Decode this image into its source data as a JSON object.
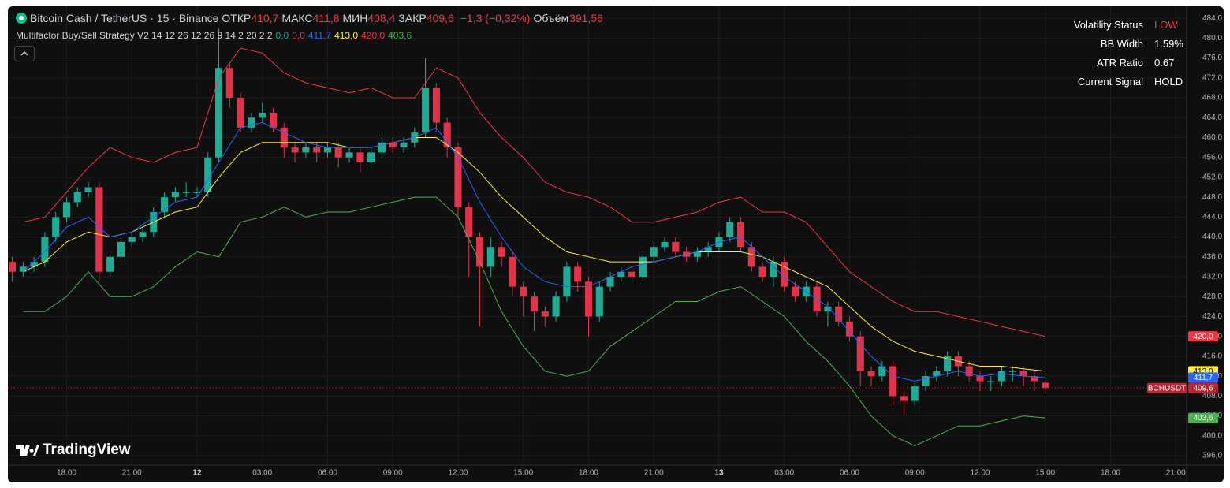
{
  "chart_data": {
    "type": "candlestick",
    "title": "Bitcoin Cash / TetherUS · 15 · Binance",
    "ohlc": [
      {
        "label": "ОТКР",
        "value": "410,7"
      },
      {
        "label": "МАКС",
        "value": "411,8"
      },
      {
        "label": "МИН",
        "value": "408,4"
      },
      {
        "label": "ЗАКР",
        "value": "409,6"
      }
    ],
    "change": "−1,3 (−0,32%)",
    "volume_label": "Объём",
    "volume": "391,56",
    "indicator": "Multifactor Buy/Sell Strategy V2 14 12 26 12 26 9 14 2 20 2 2",
    "indicator_values": [
      {
        "label": "0,0",
        "color": "#22ab94"
      },
      {
        "label": "0,0",
        "color": "#f23645"
      },
      {
        "label": "411,7",
        "color": "#2962ff"
      },
      {
        "label": "413,0",
        "color": "#ffeb3b"
      },
      {
        "label": "420,0",
        "color": "#f23645"
      },
      {
        "label": "403,6",
        "color": "#4caf50"
      }
    ],
    "table": [
      [
        "Volatility Status",
        "LOW"
      ],
      [
        "BB Width",
        "1.59%"
      ],
      [
        "ATR Ratio",
        "0.67"
      ],
      [
        "Current Signal",
        "HOLD"
      ]
    ],
    "table_highlight_color": "#f23645",
    "logo": "TradingView",
    "up_color": "#22ab94",
    "down_color": "#e0344b",
    "grid": true,
    "xlim": [
      -8.7,
      45.5
    ],
    "ylim": [
      394.1,
      486.4
    ],
    "xticks": [
      {
        "value": -6,
        "label": "18:00"
      },
      {
        "value": -3,
        "label": "21:00"
      },
      {
        "value": 0,
        "label": "12"
      },
      {
        "value": 3,
        "label": "03:00"
      },
      {
        "value": 6,
        "label": "06:00"
      },
      {
        "value": 9,
        "label": "09:00"
      },
      {
        "value": 12,
        "label": "12:00"
      },
      {
        "value": 15,
        "label": "15:00"
      },
      {
        "value": 18,
        "label": "18:00"
      },
      {
        "value": 21,
        "label": "21:00"
      },
      {
        "value": 24,
        "label": "13"
      },
      {
        "value": 27,
        "label": "03:00"
      },
      {
        "value": 30,
        "label": "06:00"
      },
      {
        "value": 33,
        "label": "09:00"
      },
      {
        "value": 36,
        "label": "12:00"
      },
      {
        "value": 39,
        "label": "15:00"
      },
      {
        "value": 42,
        "label": "18:00"
      },
      {
        "value": 45,
        "label": "21:00"
      }
    ],
    "yticks": [
      {
        "value": 396,
        "label": "396,0"
      },
      {
        "value": 400,
        "label": "400,0"
      },
      {
        "value": 404,
        "label": "404,0"
      },
      {
        "value": 408,
        "label": "408,0"
      },
      {
        "value": 412,
        "label": "412,0"
      },
      {
        "value": 416,
        "label": "416,0"
      },
      {
        "value": 420,
        "label": "420,0"
      },
      {
        "value": 424,
        "label": "424,0"
      },
      {
        "value": 428,
        "label": "428,0"
      },
      {
        "value": 432,
        "label": "432,0"
      },
      {
        "value": 436,
        "label": "436,0"
      },
      {
        "value": 440,
        "label": "440,0"
      },
      {
        "value": 444,
        "label": "444,0"
      },
      {
        "value": 448,
        "label": "448,0"
      },
      {
        "value": 452,
        "label": "452,0"
      },
      {
        "value": 456,
        "label": "456,0"
      },
      {
        "value": 460,
        "label": "460,0"
      },
      {
        "value": 464,
        "label": "464,0"
      },
      {
        "value": 468,
        "label": "468,0"
      },
      {
        "value": 472,
        "label": "472,0"
      },
      {
        "value": 476,
        "label": "476,0"
      },
      {
        "value": 480,
        "label": "480,0"
      },
      {
        "value": 484,
        "label": "484,0"
      }
    ],
    "x": [
      -8.5,
      -8,
      -7.5,
      -7,
      -6.5,
      -6,
      -5.5,
      -5,
      -4.5,
      -4,
      -3.5,
      -3,
      -2.5,
      -2,
      -1.5,
      -1,
      -0.5,
      0,
      0.5,
      1,
      1.5,
      2,
      2.5,
      3,
      3.5,
      4,
      4.5,
      5,
      5.5,
      6,
      6.5,
      7,
      7.5,
      8,
      8.5,
      9,
      9.5,
      10,
      10.5,
      11,
      11.5,
      12,
      12.5,
      13,
      13.5,
      14,
      14.5,
      15,
      15.5,
      16,
      16.5,
      17,
      17.5,
      18,
      18.5,
      19,
      19.5,
      20,
      20.5,
      21,
      21.5,
      22,
      22.5,
      23,
      23.5,
      24,
      24.5,
      25,
      25.5,
      26,
      26.5,
      27,
      27.5,
      28,
      28.5,
      29,
      29.5,
      30,
      30.5,
      31,
      31.5,
      32,
      32.5,
      33,
      33.5,
      34,
      34.5,
      35,
      35.5,
      36,
      36.5,
      37,
      37.5,
      38,
      38.5,
      39
    ],
    "open": [
      435,
      433,
      434,
      435,
      440,
      444,
      447,
      449,
      450,
      433,
      436,
      439,
      440,
      441,
      445,
      448,
      449,
      449,
      449,
      456,
      474,
      468,
      462,
      464,
      465,
      462,
      458,
      457,
      458,
      457,
      458,
      456,
      457,
      455,
      457,
      459,
      458,
      459,
      461,
      470,
      463,
      458,
      446,
      440,
      434,
      438,
      436,
      430,
      428,
      425,
      424,
      428,
      434,
      431,
      424,
      430,
      432,
      433,
      432,
      436,
      438,
      439,
      437,
      436,
      437,
      438,
      440,
      443,
      438,
      434,
      432,
      435,
      430,
      428,
      430,
      425,
      426,
      423,
      420,
      413,
      412,
      414,
      408,
      407,
      410,
      412,
      413,
      416,
      414,
      412,
      411,
      411,
      413,
      413,
      412,
      410.7
    ],
    "high": [
      436,
      435,
      436,
      441,
      445,
      448,
      450,
      451,
      451,
      437,
      440,
      441,
      442,
      446,
      449,
      450,
      451,
      450,
      457,
      482,
      475,
      469,
      465,
      467,
      466,
      463,
      459,
      459,
      459,
      459,
      459,
      458,
      458,
      458,
      460,
      460,
      460,
      462,
      476,
      471,
      464,
      459,
      447,
      441,
      440,
      439,
      437,
      431,
      429,
      426,
      429,
      435,
      435,
      432,
      431,
      433,
      434,
      434,
      437,
      439,
      440,
      440,
      438,
      438,
      439,
      441,
      444,
      444,
      439,
      435,
      436,
      436,
      431,
      431,
      431,
      427,
      427,
      424,
      421,
      414,
      415,
      415,
      409,
      411,
      413,
      414,
      417,
      417,
      415,
      413,
      412,
      414,
      414,
      414,
      413,
      411.8
    ],
    "low": [
      431,
      432,
      433,
      434,
      439,
      443,
      446,
      448,
      431,
      432,
      435,
      438,
      439,
      440,
      444,
      447,
      448,
      448,
      448,
      455,
      466,
      461,
      461,
      463,
      461,
      456,
      455,
      456,
      455,
      456,
      454,
      455,
      453,
      454,
      456,
      457,
      457,
      458,
      460,
      461,
      456,
      444,
      432,
      422,
      432,
      434,
      428,
      424,
      421,
      422,
      423,
      427,
      429,
      420,
      423,
      429,
      431,
      431,
      431,
      435,
      437,
      436,
      435,
      435,
      436,
      437,
      439,
      437,
      433,
      431,
      430,
      429,
      427,
      427,
      424,
      422,
      422,
      419,
      410,
      410,
      411,
      406,
      404,
      406,
      409,
      411,
      412,
      412,
      411,
      409,
      409,
      410,
      411,
      410,
      409,
      408.4
    ],
    "close": [
      433,
      434,
      435,
      440,
      444,
      447,
      449,
      450,
      433,
      436,
      439,
      440,
      441,
      445,
      448,
      449,
      449,
      449,
      456,
      474,
      468,
      462,
      464,
      465,
      462,
      458,
      457,
      458,
      457,
      458,
      456,
      457,
      455,
      457,
      459,
      458,
      459,
      461,
      470,
      463,
      458,
      446,
      440,
      434,
      438,
      436,
      430,
      428,
      425,
      424,
      428,
      434,
      431,
      424,
      430,
      432,
      433,
      432,
      436,
      438,
      439,
      437,
      436,
      437,
      438,
      440,
      443,
      438,
      434,
      432,
      435,
      430,
      428,
      430,
      425,
      426,
      423,
      420,
      413,
      412,
      414,
      408,
      407,
      410,
      412,
      413,
      416,
      414,
      412,
      411,
      411,
      413,
      413,
      412,
      411,
      409.6
    ],
    "line_x": [
      -8,
      -7,
      -6,
      -5,
      -4,
      -3,
      -2,
      -1,
      0,
      1,
      2,
      3,
      4,
      5,
      6,
      7,
      8,
      9,
      10,
      11,
      12,
      13,
      14,
      15,
      16,
      17,
      18,
      19,
      20,
      21,
      22,
      23,
      24,
      25,
      26,
      27,
      28,
      29,
      30,
      31,
      32,
      33,
      34,
      35,
      36,
      37,
      38,
      39
    ],
    "lines": [
      {
        "color": "#f23645",
        "values": [
          443,
          444,
          449,
          454,
          458,
          456,
          455,
          457,
          458,
          472,
          478,
          477,
          473,
          471,
          470,
          469,
          470,
          468,
          468,
          474,
          472,
          465,
          460,
          456,
          451,
          449,
          448,
          446,
          443,
          443,
          444,
          445,
          447,
          448,
          445,
          445,
          443,
          438,
          433,
          430,
          427,
          425,
          425,
          424,
          423,
          422,
          421,
          420
        ]
      },
      {
        "color": "#4caf50",
        "values": [
          425,
          425,
          428,
          433,
          428,
          428,
          430,
          434,
          437,
          436,
          443,
          444,
          446,
          444,
          445,
          445,
          446,
          447,
          448,
          448,
          444,
          435,
          425,
          418,
          413,
          412,
          413,
          418,
          421,
          424,
          427,
          427,
          429,
          430,
          427,
          424,
          419,
          415,
          410,
          404,
          400,
          398,
          400,
          402,
          402,
          403,
          404,
          403.6
        ]
      },
      {
        "color": "#ffeb3b",
        "values": [
          433,
          435,
          439,
          441,
          440,
          441,
          443,
          445,
          446,
          452,
          457,
          459,
          459,
          459,
          459,
          458,
          458,
          459,
          460,
          460,
          457,
          453,
          448,
          444,
          440,
          437,
          436,
          435,
          435,
          435,
          436,
          437,
          437,
          437,
          436,
          434,
          432,
          430,
          426,
          422,
          419,
          417,
          416,
          415,
          414,
          414,
          413.5,
          413
        ]
      },
      {
        "color": "#2962ff",
        "values": [
          433,
          437,
          442,
          444,
          440,
          441,
          444,
          447,
          448,
          455,
          462,
          463,
          461,
          459,
          458,
          458,
          458,
          459,
          460,
          462,
          456,
          447,
          440,
          434,
          431,
          430,
          430,
          432,
          434,
          435,
          436,
          437,
          439,
          440,
          436,
          432,
          429,
          426,
          421,
          416,
          412,
          411,
          412,
          413,
          412,
          412.5,
          412,
          411.7
        ]
      }
    ],
    "last_price_line": {
      "value": 409.6,
      "color": "#f23645"
    },
    "price_badges": [
      {
        "value": 420,
        "label": "420,0",
        "color": "#f23645"
      },
      {
        "value": 413,
        "label": "413,0",
        "color": "#ffeb3b"
      },
      {
        "value": 411.7,
        "label": "411,7",
        "color": "#2962ff"
      },
      {
        "value": 409.6,
        "label": "409,6",
        "color": "#b22833",
        "symbol": "BCHUSDT"
      },
      {
        "value": 403.6,
        "label": "403,6",
        "color": "#4caf50"
      }
    ]
  }
}
